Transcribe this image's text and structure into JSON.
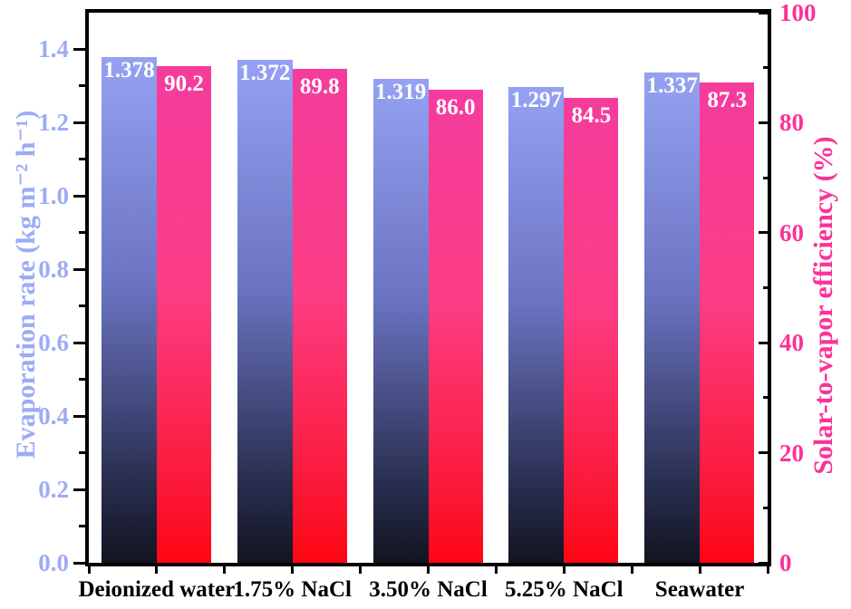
{
  "figure": {
    "background": "#ffffff"
  },
  "chart_data": {
    "type": "bar",
    "title": "",
    "grid": false,
    "legend": "none",
    "categories": [
      "Deionized water",
      "1.75% NaCl",
      "3.50% NaCl",
      "5.25% NaCl",
      "Seawater"
    ],
    "series": [
      {
        "name": "Evaporation rate",
        "axis": "left",
        "values": [
          1.378,
          1.372,
          1.319,
          1.297,
          1.337
        ],
        "value_labels": [
          "1.378",
          "1.372",
          "1.319",
          "1.297",
          "1.337"
        ],
        "bar_gradient": [
          "#95a1f2",
          "#6b74c2",
          "#272c4c",
          "#12141f"
        ]
      },
      {
        "name": "Solar-to-vapor efficiency",
        "axis": "right",
        "values": [
          90.2,
          89.8,
          86.0,
          84.5,
          87.3
        ],
        "value_labels": [
          "90.2",
          "89.8",
          "86.0",
          "84.5",
          "87.3"
        ],
        "bar_gradient": [
          "#f53c9d",
          "#fc3d85",
          "#fb1836",
          "#fe0613"
        ]
      }
    ],
    "left_axis": {
      "label": "Evaporation rate (kg m⁻² h⁻¹)",
      "min": 0,
      "max": 1.5,
      "major_tick_values": [
        0.0,
        0.2,
        0.4,
        0.6,
        0.8,
        1.0,
        1.2,
        1.4
      ],
      "major_tick_labels": [
        "0.0",
        "0.2",
        "0.4",
        "0.6",
        "0.8",
        "1.0",
        "1.2",
        "1.4"
      ],
      "minor_tick_values": [
        0.1,
        0.3,
        0.5,
        0.7,
        0.9,
        1.1,
        1.3
      ],
      "color": "#9dabf6"
    },
    "right_axis": {
      "label": "Solar-to-vapor efficiency (%)",
      "min": 0,
      "max": 100,
      "major_tick_values": [
        0,
        20,
        40,
        60,
        80,
        100
      ],
      "major_tick_labels": [
        "0",
        "20",
        "40",
        "60",
        "80",
        "100"
      ],
      "minor_tick_values": [
        10,
        30,
        50,
        70,
        90
      ],
      "color": "#fc3199"
    },
    "x_axis": {
      "label_color": "#000000"
    },
    "axis_line_color": "#000000",
    "value_label_color": "#ffffff"
  }
}
